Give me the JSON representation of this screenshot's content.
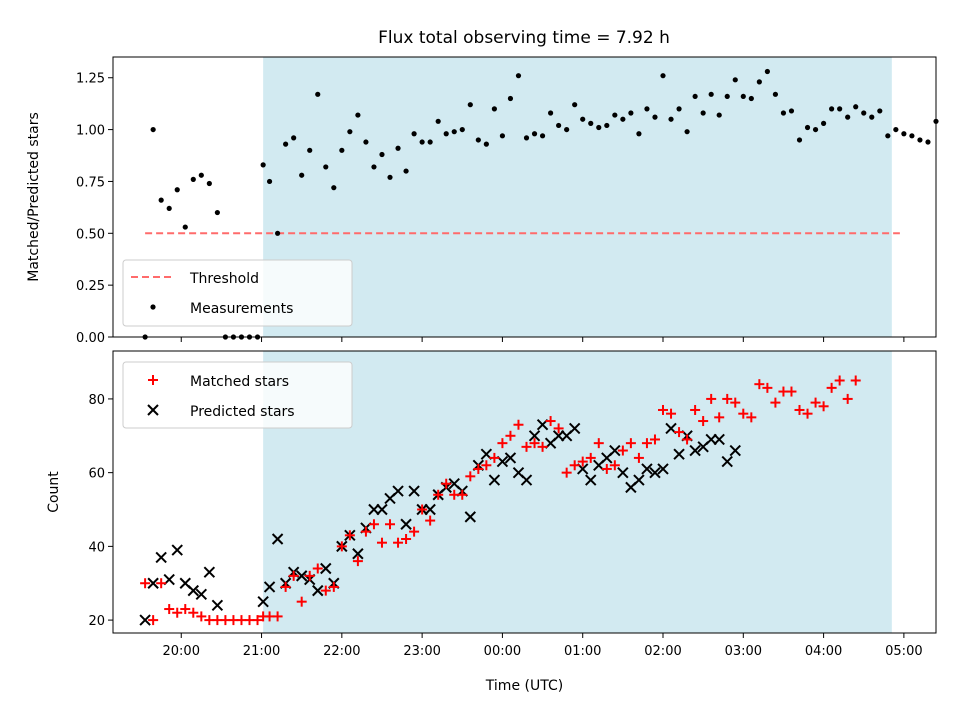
{
  "title": "Flux total observing time = 7.92 h",
  "xlabel": "Time (UTC)",
  "colors": {
    "shade": "#add8e6",
    "threshold": "#ff6b6b",
    "matched": "#ff0000",
    "predicted": "#000000",
    "measurements": "#000000"
  },
  "chart_data": [
    {
      "type": "scatter",
      "ylabel": "Matched/Predicted stars",
      "ylim": [
        0,
        1.35
      ],
      "yticks": [
        "0.00",
        "0.25",
        "0.50",
        "0.75",
        "1.00",
        "1.25"
      ],
      "ytick_values": [
        0,
        0.25,
        0.5,
        0.75,
        1.0,
        1.25
      ],
      "x_unit": "hours since 00:00 UTC",
      "xlim": [
        -4.85,
        5.4
      ],
      "observing_window": [
        -2.98,
        4.85
      ],
      "threshold": {
        "value": 0.5,
        "x_range": [
          -4.45,
          4.95
        ],
        "style": "dashed"
      },
      "legend": {
        "placement": "lower-left",
        "entries": [
          "Threshold",
          "Measurements"
        ]
      },
      "series": [
        {
          "name": "Measurements",
          "marker": "dot",
          "points": [
            [
              -4.45,
              0.0
            ],
            [
              -4.35,
              1.0
            ],
            [
              -4.25,
              0.66
            ],
            [
              -4.15,
              0.62
            ],
            [
              -4.05,
              0.71
            ],
            [
              -3.95,
              0.53
            ],
            [
              -3.85,
              0.76
            ],
            [
              -3.75,
              0.78
            ],
            [
              -3.65,
              0.74
            ],
            [
              -3.55,
              0.6
            ],
            [
              -3.45,
              0.0
            ],
            [
              -3.35,
              0.0
            ],
            [
              -3.25,
              0.0
            ],
            [
              -3.15,
              0.0
            ],
            [
              -3.05,
              0.0
            ],
            [
              -2.98,
              0.83
            ],
            [
              -2.9,
              0.75
            ],
            [
              -2.8,
              0.5
            ],
            [
              -2.7,
              0.93
            ],
            [
              -2.6,
              0.96
            ],
            [
              -2.5,
              0.78
            ],
            [
              -2.4,
              0.9
            ],
            [
              -2.3,
              1.17
            ],
            [
              -2.2,
              0.82
            ],
            [
              -2.1,
              0.72
            ],
            [
              -2.0,
              0.9
            ],
            [
              -1.9,
              0.99
            ],
            [
              -1.8,
              1.07
            ],
            [
              -1.7,
              0.94
            ],
            [
              -1.6,
              0.82
            ],
            [
              -1.5,
              0.88
            ],
            [
              -1.4,
              0.77
            ],
            [
              -1.3,
              0.91
            ],
            [
              -1.2,
              0.8
            ],
            [
              -1.1,
              0.98
            ],
            [
              -1.0,
              0.94
            ],
            [
              -0.9,
              0.94
            ],
            [
              -0.8,
              1.04
            ],
            [
              -0.7,
              0.98
            ],
            [
              -0.6,
              0.99
            ],
            [
              -0.5,
              1.0
            ],
            [
              -0.4,
              1.12
            ],
            [
              -0.3,
              0.95
            ],
            [
              -0.2,
              0.93
            ],
            [
              -0.1,
              1.1
            ],
            [
              0.0,
              0.97
            ],
            [
              0.1,
              1.15
            ],
            [
              0.2,
              1.26
            ],
            [
              0.3,
              0.96
            ],
            [
              0.4,
              0.98
            ],
            [
              0.5,
              0.97
            ],
            [
              0.6,
              1.08
            ],
            [
              0.7,
              1.02
            ],
            [
              0.8,
              1.0
            ],
            [
              0.9,
              1.12
            ],
            [
              1.0,
              1.05
            ],
            [
              1.1,
              1.03
            ],
            [
              1.2,
              1.01
            ],
            [
              1.3,
              1.02
            ],
            [
              1.4,
              1.07
            ],
            [
              1.5,
              1.05
            ],
            [
              1.6,
              1.08
            ],
            [
              1.7,
              0.98
            ],
            [
              1.8,
              1.1
            ],
            [
              1.9,
              1.06
            ],
            [
              2.0,
              1.26
            ],
            [
              2.1,
              1.05
            ],
            [
              2.2,
              1.1
            ],
            [
              2.3,
              0.99
            ],
            [
              2.4,
              1.16
            ],
            [
              2.5,
              1.08
            ],
            [
              2.6,
              1.17
            ],
            [
              2.7,
              1.07
            ],
            [
              2.8,
              1.16
            ],
            [
              2.9,
              1.24
            ],
            [
              3.0,
              1.16
            ],
            [
              3.1,
              1.15
            ],
            [
              3.2,
              1.23
            ],
            [
              3.3,
              1.28
            ],
            [
              3.4,
              1.17
            ],
            [
              3.5,
              1.08
            ],
            [
              3.6,
              1.09
            ],
            [
              3.7,
              0.95
            ],
            [
              3.8,
              1.01
            ],
            [
              3.9,
              1.0
            ],
            [
              4.0,
              1.03
            ],
            [
              4.1,
              1.1
            ],
            [
              4.2,
              1.1
            ],
            [
              4.3,
              1.06
            ],
            [
              4.4,
              1.11
            ],
            [
              4.5,
              1.08
            ],
            [
              4.6,
              1.06
            ],
            [
              4.7,
              1.09
            ],
            [
              4.8,
              0.97
            ],
            [
              4.9,
              1.0
            ],
            [
              5.0,
              0.98
            ],
            [
              5.1,
              0.97
            ],
            [
              5.2,
              0.95
            ],
            [
              5.3,
              0.94
            ],
            [
              5.4,
              1.04
            ]
          ]
        }
      ]
    },
    {
      "type": "scatter",
      "ylabel": "Count",
      "ylim": [
        16.5,
        93
      ],
      "yticks": [
        "20",
        "40",
        "60",
        "80"
      ],
      "ytick_values": [
        20,
        40,
        60,
        80
      ],
      "xticks": [
        "20:00",
        "21:00",
        "22:00",
        "23:00",
        "00:00",
        "01:00",
        "02:00",
        "03:00",
        "04:00",
        "05:00"
      ],
      "xtick_values": [
        -4,
        -3,
        -2,
        -1,
        0,
        1,
        2,
        3,
        4,
        5
      ],
      "legend": {
        "placement": "upper-left",
        "entries": [
          "Matched stars",
          "Predicted stars"
        ]
      },
      "series": [
        {
          "name": "Matched stars",
          "marker": "plus",
          "points": [
            [
              -4.45,
              30
            ],
            [
              -4.35,
              20
            ],
            [
              -4.25,
              30
            ],
            [
              -4.15,
              23
            ],
            [
              -4.05,
              22
            ],
            [
              -3.95,
              23
            ],
            [
              -3.85,
              22
            ],
            [
              -3.75,
              21
            ],
            [
              -3.65,
              20
            ],
            [
              -3.55,
              20
            ],
            [
              -3.45,
              20
            ],
            [
              -3.35,
              20
            ],
            [
              -3.25,
              20
            ],
            [
              -3.15,
              20
            ],
            [
              -3.05,
              20
            ],
            [
              -2.98,
              21
            ],
            [
              -2.9,
              21
            ],
            [
              -2.8,
              21
            ],
            [
              -2.7,
              29
            ],
            [
              -2.6,
              32
            ],
            [
              -2.5,
              25
            ],
            [
              -2.4,
              32
            ],
            [
              -2.3,
              34
            ],
            [
              -2.2,
              28
            ],
            [
              -2.1,
              29
            ],
            [
              -2.0,
              40
            ],
            [
              -1.9,
              43
            ],
            [
              -1.8,
              36
            ],
            [
              -1.7,
              44
            ],
            [
              -1.6,
              46
            ],
            [
              -1.5,
              41
            ],
            [
              -1.4,
              46
            ],
            [
              -1.3,
              41
            ],
            [
              -1.2,
              42
            ],
            [
              -1.1,
              44
            ],
            [
              -1.0,
              50
            ],
            [
              -0.9,
              47
            ],
            [
              -0.8,
              54
            ],
            [
              -0.7,
              57
            ],
            [
              -0.6,
              54
            ],
            [
              -0.5,
              54
            ],
            [
              -0.4,
              59
            ],
            [
              -0.3,
              61
            ],
            [
              -0.2,
              62
            ],
            [
              -0.1,
              64
            ],
            [
              0.0,
              68
            ],
            [
              0.1,
              70
            ],
            [
              0.2,
              73
            ],
            [
              0.3,
              67
            ],
            [
              0.4,
              68
            ],
            [
              0.5,
              67
            ],
            [
              0.6,
              74
            ],
            [
              0.7,
              72
            ],
            [
              0.8,
              60
            ],
            [
              0.9,
              62
            ],
            [
              1.0,
              63
            ],
            [
              1.1,
              64
            ],
            [
              1.2,
              68
            ],
            [
              1.3,
              61
            ],
            [
              1.4,
              62
            ],
            [
              1.5,
              66
            ],
            [
              1.6,
              68
            ],
            [
              1.7,
              64
            ],
            [
              1.8,
              68
            ],
            [
              1.9,
              69
            ],
            [
              2.0,
              77
            ],
            [
              2.1,
              76
            ],
            [
              2.2,
              71
            ],
            [
              2.3,
              69
            ],
            [
              2.4,
              77
            ],
            [
              2.5,
              74
            ],
            [
              2.6,
              80
            ],
            [
              2.7,
              75
            ],
            [
              2.8,
              80
            ],
            [
              2.9,
              79
            ],
            [
              3.0,
              76
            ],
            [
              3.1,
              75
            ],
            [
              3.2,
              84
            ],
            [
              3.3,
              83
            ],
            [
              3.4,
              79
            ],
            [
              3.5,
              82
            ],
            [
              3.6,
              82
            ],
            [
              3.7,
              77
            ],
            [
              3.8,
              76
            ],
            [
              3.9,
              79
            ],
            [
              4.0,
              78
            ],
            [
              4.1,
              83
            ],
            [
              4.2,
              85
            ],
            [
              4.3,
              80
            ],
            [
              4.4,
              85
            ]
          ]
        },
        {
          "name": "Predicted stars",
          "marker": "x",
          "points": [
            [
              -4.45,
              20
            ],
            [
              -4.35,
              30
            ],
            [
              -4.25,
              37
            ],
            [
              -4.15,
              31
            ],
            [
              -4.05,
              39
            ],
            [
              -3.95,
              30
            ],
            [
              -3.85,
              28
            ],
            [
              -3.75,
              27
            ],
            [
              -3.65,
              33
            ],
            [
              -3.55,
              24
            ],
            [
              -2.98,
              25
            ],
            [
              -2.9,
              29
            ],
            [
              -2.8,
              42
            ],
            [
              -2.7,
              30
            ],
            [
              -2.6,
              33
            ],
            [
              -2.5,
              32
            ],
            [
              -2.4,
              31
            ],
            [
              -2.3,
              28
            ],
            [
              -2.2,
              34
            ],
            [
              -2.1,
              30
            ],
            [
              -2.0,
              40
            ],
            [
              -1.9,
              43
            ],
            [
              -1.8,
              38
            ],
            [
              -1.7,
              45
            ],
            [
              -1.6,
              50
            ],
            [
              -1.5,
              50
            ],
            [
              -1.4,
              53
            ],
            [
              -1.3,
              55
            ],
            [
              -1.2,
              46
            ],
            [
              -1.1,
              55
            ],
            [
              -1.0,
              50
            ],
            [
              -0.9,
              50
            ],
            [
              -0.8,
              54
            ],
            [
              -0.7,
              56
            ],
            [
              -0.6,
              57
            ],
            [
              -0.5,
              55
            ],
            [
              -0.4,
              48
            ],
            [
              -0.3,
              62
            ],
            [
              -0.2,
              65
            ],
            [
              -0.1,
              58
            ],
            [
              0.0,
              63
            ],
            [
              0.1,
              64
            ],
            [
              0.2,
              60
            ],
            [
              0.3,
              58
            ],
            [
              0.4,
              70
            ],
            [
              0.5,
              73
            ],
            [
              0.6,
              68
            ],
            [
              0.7,
              70
            ],
            [
              0.8,
              70
            ],
            [
              0.9,
              72
            ],
            [
              1.0,
              61
            ],
            [
              1.1,
              58
            ],
            [
              1.2,
              62
            ],
            [
              1.3,
              64
            ],
            [
              1.4,
              66
            ],
            [
              1.5,
              60
            ],
            [
              1.6,
              56
            ],
            [
              1.7,
              58
            ],
            [
              1.8,
              61
            ],
            [
              1.9,
              60
            ],
            [
              2.0,
              61
            ],
            [
              2.1,
              72
            ],
            [
              2.2,
              65
            ],
            [
              2.3,
              70
            ],
            [
              2.4,
              66
            ],
            [
              2.5,
              67
            ],
            [
              2.6,
              69
            ],
            [
              2.7,
              69
            ],
            [
              2.8,
              63
            ],
            [
              2.9,
              66
            ]
          ]
        }
      ]
    }
  ]
}
